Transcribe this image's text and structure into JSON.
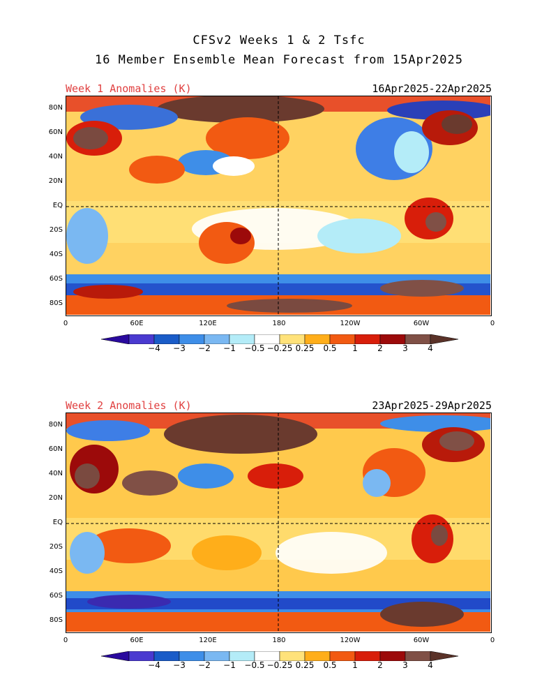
{
  "header": {
    "line1": "CFSv2 Weeks 1 & 2 Tsfc",
    "line2": "16 Member Ensemble Mean Forecast from 15Apr2025"
  },
  "panels": [
    {
      "title": "Week 1 Anomalies (K)",
      "dates": "16Apr2025-22Apr2025"
    },
    {
      "title": "Week 2 Anomalies (K)",
      "dates": "23Apr2025-29Apr2025"
    }
  ],
  "axes": {
    "lat_ticks": [
      "80N",
      "60N",
      "40N",
      "20N",
      "EQ",
      "20S",
      "40S",
      "60S",
      "80S"
    ],
    "lon_ticks": [
      "0",
      "60E",
      "120E",
      "180",
      "120W",
      "60W",
      "0"
    ]
  },
  "colorbar": {
    "labels": [
      "-4",
      "-3",
      "-2",
      "-1",
      "-0.5",
      "-0.25",
      "0.25",
      "0.5",
      "1",
      "2",
      "3",
      "4"
    ],
    "colors": [
      "#2a0a9e",
      "#4a3ad0",
      "#1a5cc8",
      "#3e8ee8",
      "#7ab8f2",
      "#b4ecf8",
      "#ffffff",
      "#ffe27a",
      "#ffae1a",
      "#f25a12",
      "#d81e0a",
      "#9c0a0a",
      "#805046",
      "#5a3228"
    ]
  }
}
